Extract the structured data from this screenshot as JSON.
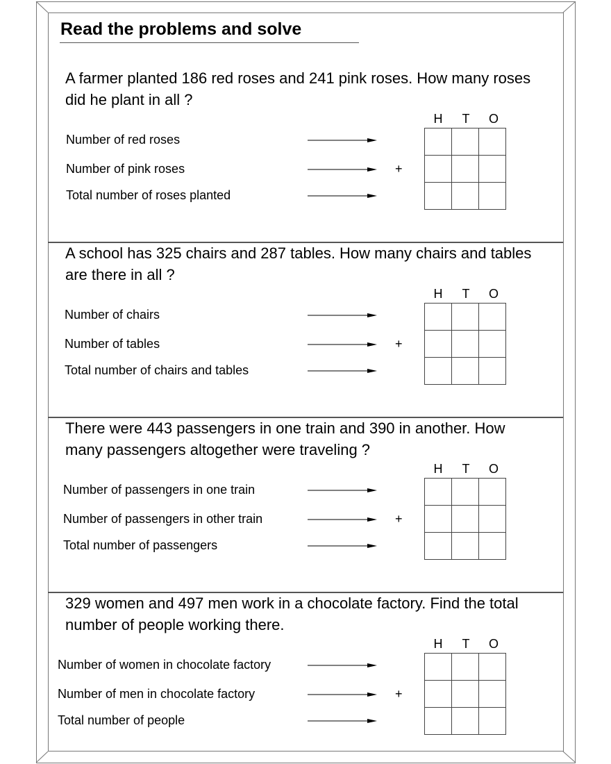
{
  "title": "Read the problems and solve",
  "columns": [
    "H",
    "T",
    "O"
  ],
  "operator": "+",
  "problems": [
    {
      "question": "A farmer planted 186 red roses and 241 pink roses. How many roses did he plant in all ?",
      "labels": [
        "Number of red roses",
        "Number of pink roses",
        "Total number of roses planted"
      ]
    },
    {
      "question": "A school has 325 chairs and 287 tables. How many chairs and tables are there in all ?",
      "labels": [
        "Number of chairs",
        "Number of tables",
        "Total number of chairs and tables"
      ]
    },
    {
      "question": "There were 443 passengers in one train and 390 in another. How many passengers altogether were traveling ?",
      "labels": [
        "Number of passengers in one train",
        "Number of passengers in other train",
        "Total number of passengers"
      ]
    },
    {
      "question": "329 women and 497 men work in a chocolate factory. Find the total number of people working there.",
      "labels": [
        "Number of women in chocolate factory",
        "Number of men in chocolate factory",
        "Total number of people"
      ]
    }
  ]
}
